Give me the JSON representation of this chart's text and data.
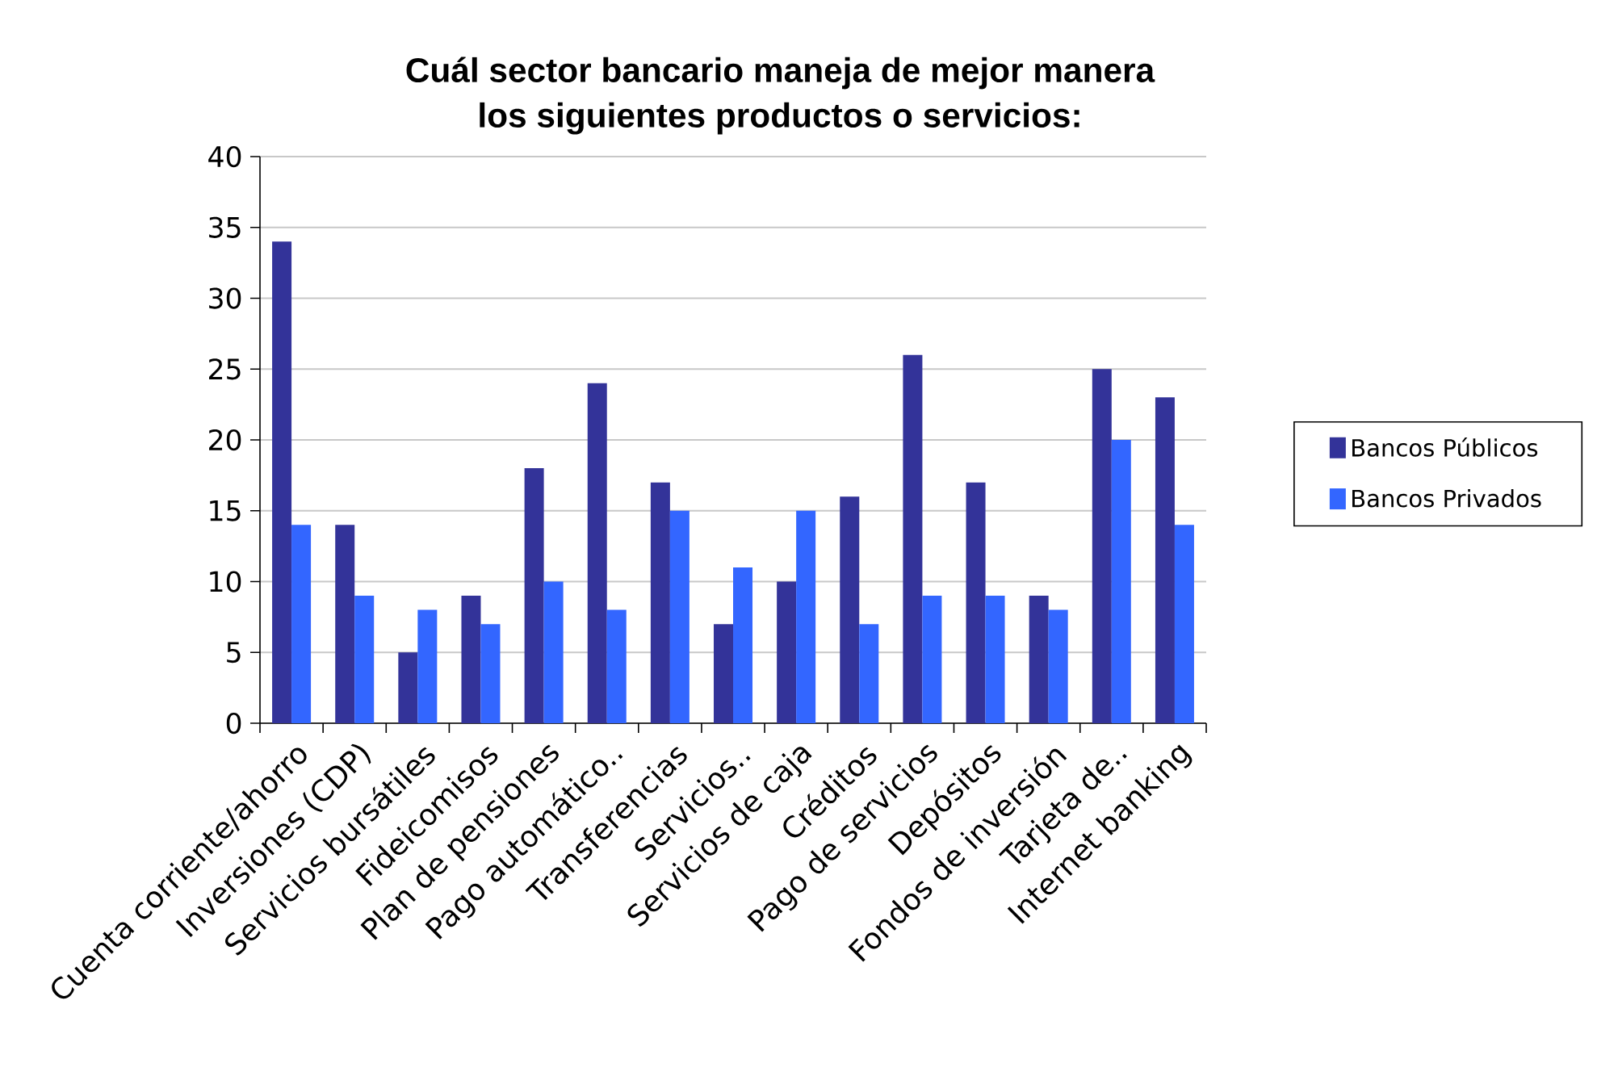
{
  "chart_data": {
    "type": "bar",
    "title": "Cuál sector bancario maneja de mejor manera los siguientes productos o servicios:",
    "categories": [
      "Cuenta corriente/ahorro",
      "Inversiones (CDP)",
      "Servicios bursátiles",
      "Fideicomisos",
      "Plan de pensiones",
      "Pago automático..",
      "Transferencias",
      "Servicios..",
      "Servicios de caja",
      "Créditos",
      "Pago de servicios",
      "Depósitos",
      "Fondos de inversión",
      "Tarjeta de..",
      "Internet banking"
    ],
    "series": [
      {
        "name": "Bancos Públicos",
        "color": "#333399",
        "values": [
          34,
          14,
          5,
          9,
          18,
          24,
          17,
          7,
          10,
          16,
          26,
          17,
          9,
          25,
          23
        ]
      },
      {
        "name": "Bancos Privados",
        "color": "#3366ff",
        "values": [
          14,
          9,
          8,
          7,
          10,
          8,
          15,
          11,
          15,
          7,
          9,
          9,
          8,
          20,
          14
        ]
      }
    ],
    "ylim": [
      0,
      40
    ],
    "yticks": [
      0,
      5,
      10,
      15,
      20,
      25,
      30,
      35,
      40
    ],
    "grid": "y",
    "legend": "right"
  }
}
